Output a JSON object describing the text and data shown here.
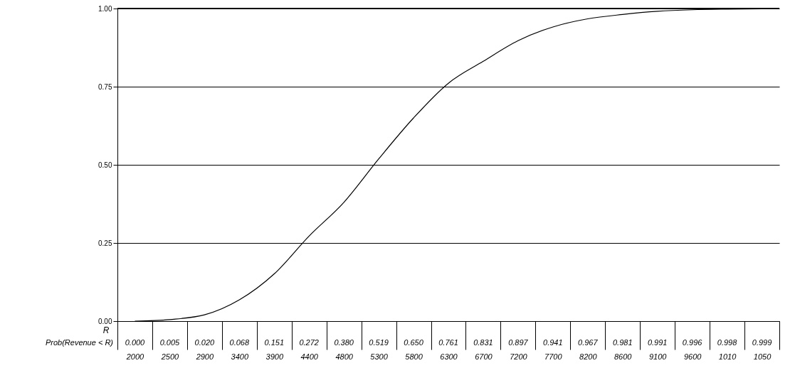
{
  "chart_data": {
    "type": "line",
    "xlabel": "R",
    "annotations": [
      "Prob(Revenue < R)"
    ],
    "categories": [
      "2000",
      "2500",
      "2900",
      "3400",
      "3900",
      "4400",
      "4800",
      "5300",
      "5800",
      "6300",
      "6700",
      "7200",
      "7700",
      "8200",
      "8600",
      "9100",
      "9600",
      "1010",
      "1050"
    ],
    "series": [
      {
        "color": "#000000",
        "values": [
          0.0,
          0.005,
          0.02,
          0.068,
          0.151,
          0.272,
          0.38,
          0.519,
          0.65,
          0.761,
          0.831,
          0.897,
          0.941,
          0.967,
          0.981,
          0.991,
          0.996,
          0.998,
          0.999
        ],
        "value_labels": [
          "0.000",
          "0.005",
          "0.020",
          "0.068",
          "0.151",
          "0.272",
          "0.380",
          "0.519",
          "0.650",
          "0.761",
          "0.831",
          "0.897",
          "0.941",
          "0.967",
          "0.981",
          "0.991",
          "0.996",
          "0.998",
          "0.999"
        ]
      }
    ],
    "ylim": [
      0,
      1
    ],
    "yticks": [
      {
        "value": 0,
        "label": "0.00"
      },
      {
        "value": 0.25,
        "label": "0.25"
      },
      {
        "value": 0.5,
        "label": "0.50"
      },
      {
        "value": 0.75,
        "label": "0.75"
      },
      {
        "value": 1,
        "label": "1.00"
      }
    ],
    "grid": "y",
    "marker": "none",
    "line_style": "solid"
  }
}
